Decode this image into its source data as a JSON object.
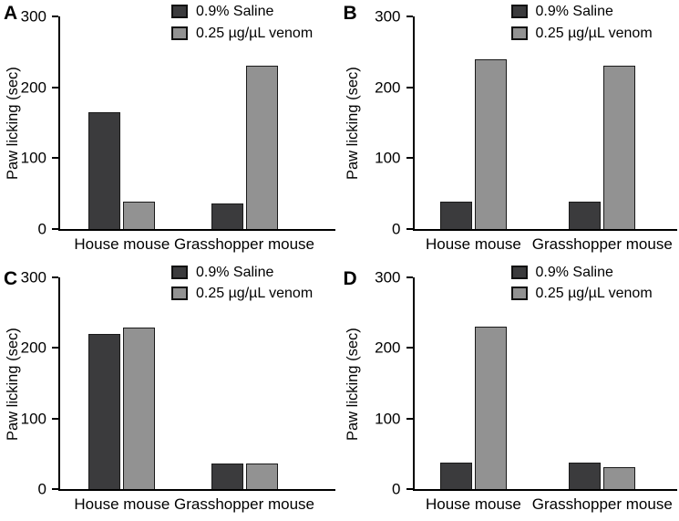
{
  "colors": {
    "saline": "#3b3b3d",
    "venom": "#929292",
    "bar_border": "#1a1a1a",
    "axis": "#000000",
    "background": "#ffffff",
    "text": "#000000"
  },
  "chart_data": [
    {
      "panel": "A",
      "type": "bar",
      "categories": [
        "House mouse",
        "Grasshopper mouse"
      ],
      "series": [
        {
          "name": "0.9% Saline",
          "values": [
            165,
            35
          ]
        },
        {
          "name": "0.25 µg/µL venom",
          "values": [
            38,
            230
          ]
        }
      ],
      "title": "",
      "xlabel": "",
      "ylabel": "Paw licking (sec)",
      "ylim": [
        0,
        300
      ],
      "yticks": [
        0,
        100,
        200,
        300
      ],
      "grid": false,
      "legend_position": "top-right",
      "layout": {
        "group_centers_pct": [
          22.5,
          67
        ]
      }
    },
    {
      "panel": "B",
      "type": "bar",
      "categories": [
        "House mouse",
        "Grasshopper mouse"
      ],
      "series": [
        {
          "name": "0.9% Saline",
          "values": [
            38,
            38
          ]
        },
        {
          "name": "0.25 µg/µL venom",
          "values": [
            240,
            230
          ]
        }
      ],
      "title": "",
      "xlabel": "",
      "ylabel": "Paw licking (sec)",
      "ylim": [
        0,
        300
      ],
      "yticks": [
        0,
        100,
        200,
        300
      ],
      "grid": false,
      "legend_position": "top-right",
      "layout": {
        "group_centers_pct": [
          22.5,
          71.5
        ]
      }
    },
    {
      "panel": "C",
      "type": "bar",
      "categories": [
        "House mouse",
        "Grasshopper mouse"
      ],
      "series": [
        {
          "name": "0.9% Saline",
          "values": [
            220,
            36
          ]
        },
        {
          "name": "0.25 µg/µL venom",
          "values": [
            228,
            36
          ]
        }
      ],
      "title": "",
      "xlabel": "",
      "ylabel": "Paw licking (sec)",
      "ylim": [
        0,
        300
      ],
      "yticks": [
        0,
        100,
        200,
        300
      ],
      "grid": false,
      "legend_position": "top-right",
      "layout": {
        "group_centers_pct": [
          22.5,
          67
        ]
      }
    },
    {
      "panel": "D",
      "type": "bar",
      "categories": [
        "House mouse",
        "Grasshopper mouse"
      ],
      "series": [
        {
          "name": "0.9% Saline",
          "values": [
            38,
            38
          ]
        },
        {
          "name": "0.25 µg/µL venom",
          "values": [
            230,
            31
          ]
        }
      ],
      "title": "",
      "xlabel": "",
      "ylabel": "Paw licking (sec)",
      "ylim": [
        0,
        300
      ],
      "yticks": [
        0,
        100,
        200,
        300
      ],
      "grid": false,
      "legend_position": "top-right",
      "layout": {
        "group_centers_pct": [
          22.5,
          71.5
        ]
      }
    }
  ]
}
